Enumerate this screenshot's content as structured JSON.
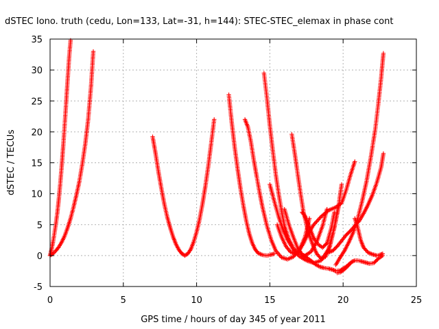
{
  "chart_data": {
    "type": "scatter",
    "title": "dSTEC Iono. truth (cedu, Lon=133, Lat=-31, h=144): STEC-STEC_elemax in phase cont",
    "xlabel": "GPS time / hours of day 345 of year 2011",
    "ylabel": "dSTEC  / TECUs",
    "xlim": [
      0,
      25
    ],
    "ylim": [
      -5,
      35
    ],
    "xticks": [
      "0",
      "5",
      "10",
      "15",
      "20",
      "25"
    ],
    "yticks": [
      "-5",
      "0",
      "5",
      "10",
      "15",
      "20",
      "25",
      "30",
      "35"
    ],
    "grid": true,
    "marker": "+",
    "color": "#ff0000",
    "series": [
      {
        "x": [
          0.0,
          0.1,
          0.2,
          0.3,
          0.4,
          0.5,
          0.6,
          0.7,
          0.8,
          0.9,
          1.0,
          1.1,
          1.2,
          1.3,
          1.4
        ],
        "values": [
          0.0,
          1.0,
          2.2,
          3.6,
          5.2,
          7.0,
          9.2,
          11.8,
          14.6,
          17.8,
          21.2,
          24.8,
          28.5,
          32.0,
          34.8
        ]
      },
      {
        "x": [
          0.0,
          0.2,
          0.4,
          0.6,
          0.8,
          1.0,
          1.2,
          1.4,
          1.6,
          1.8,
          2.0,
          2.2,
          2.4,
          2.6,
          2.8,
          2.95
        ],
        "values": [
          0.0,
          0.3,
          0.8,
          1.4,
          2.2,
          3.2,
          4.5,
          6.0,
          7.8,
          9.8,
          12.0,
          14.8,
          18.0,
          22.0,
          27.5,
          33.0
        ]
      },
      {
        "x": [
          7.0,
          7.2,
          7.4,
          7.6,
          7.8,
          8.0,
          8.2,
          8.4,
          8.6,
          8.8,
          9.0,
          9.2,
          9.4,
          9.6,
          9.8,
          10.0,
          10.2,
          10.4,
          10.6,
          10.8,
          11.0,
          11.2
        ],
        "values": [
          19.2,
          16.5,
          13.5,
          10.8,
          8.3,
          6.2,
          4.5,
          3.0,
          1.8,
          0.9,
          0.3,
          0.0,
          0.3,
          1.0,
          2.2,
          3.8,
          5.8,
          8.3,
          11.2,
          14.5,
          18.2,
          22.0
        ]
      },
      {
        "x": [
          12.2,
          12.4,
          12.6,
          12.8,
          13.0,
          13.2,
          13.4,
          13.6,
          13.8,
          14.0,
          14.2,
          14.5,
          14.8,
          15.0,
          15.3
        ],
        "values": [
          26.0,
          21.5,
          17.5,
          14.0,
          10.8,
          8.0,
          5.5,
          3.5,
          2.0,
          1.0,
          0.4,
          0.1,
          0.0,
          0.1,
          0.3
        ]
      },
      {
        "x": [
          13.3,
          13.5,
          13.7,
          13.9,
          14.1,
          14.3,
          14.5,
          14.8,
          15.1,
          15.4,
          15.8,
          16.2,
          16.6,
          17.0,
          17.4,
          17.7
        ],
        "values": [
          22.0,
          20.8,
          18.5,
          15.5,
          12.8,
          10.2,
          7.8,
          4.8,
          2.5,
          0.8,
          -0.3,
          -0.6,
          -0.2,
          0.8,
          3.0,
          6.0
        ]
      },
      {
        "x": [
          14.6,
          14.8,
          15.0,
          15.2,
          15.4,
          15.6,
          15.8,
          16.0,
          16.3,
          16.6,
          17.0,
          17.4,
          17.8,
          18.2,
          18.6,
          18.9
        ],
        "values": [
          29.5,
          25.5,
          21.0,
          17.0,
          13.2,
          10.0,
          7.2,
          4.8,
          2.6,
          1.2,
          0.2,
          0.0,
          0.6,
          2.2,
          4.8,
          7.5
        ]
      },
      {
        "x": [
          15.0,
          15.3,
          15.6,
          15.9,
          16.2,
          16.6,
          17.0,
          17.5,
          18.0,
          18.5,
          19.0,
          19.4,
          19.7,
          19.9
        ],
        "values": [
          11.5,
          8.8,
          6.3,
          4.2,
          2.6,
          1.0,
          -0.1,
          -0.8,
          -1.2,
          -0.8,
          1.0,
          4.5,
          8.2,
          11.5
        ]
      },
      {
        "x": [
          16.5,
          16.7,
          16.9,
          17.1,
          17.3,
          17.6,
          17.9,
          18.2,
          18.5,
          18.8,
          19.1,
          19.4,
          19.7
        ],
        "values": [
          19.6,
          16.5,
          13.2,
          10.0,
          7.0,
          4.0,
          1.9,
          0.3,
          -0.5,
          -0.2,
          1.5,
          4.5,
          8.0
        ]
      },
      {
        "x": [
          15.5,
          15.8,
          16.1,
          16.4,
          16.7,
          17.0,
          17.3,
          17.6,
          18.0,
          18.5,
          19.0,
          19.5,
          19.9,
          20.2,
          20.5,
          20.8
        ],
        "values": [
          5.0,
          3.0,
          1.5,
          0.6,
          0.3,
          0.8,
          2.0,
          3.5,
          5.0,
          6.3,
          7.3,
          7.8,
          8.5,
          10.5,
          13.0,
          15.2
        ]
      },
      {
        "x": [
          16.0,
          16.3,
          16.6,
          16.9,
          17.2,
          17.5,
          17.8,
          18.1,
          18.4,
          18.7,
          19.0,
          19.3,
          19.5,
          19.8,
          20.2,
          20.6
        ],
        "values": [
          7.5,
          5.0,
          3.0,
          1.2,
          0.2,
          -0.3,
          -0.8,
          -1.4,
          -1.8,
          -2.0,
          -2.1,
          -2.3,
          -2.5,
          -2.4,
          -1.8,
          -1.0
        ]
      },
      {
        "x": [
          17.2,
          17.4,
          17.6,
          17.8,
          18.0,
          18.3,
          18.6,
          18.9,
          19.2,
          19.4
        ],
        "values": [
          7.0,
          6.4,
          5.2,
          4.0,
          2.8,
          1.8,
          1.3,
          2.0,
          4.5,
          7.0
        ]
      },
      {
        "x": [
          19.6,
          19.8,
          20.0,
          20.2,
          20.4,
          20.6,
          20.8,
          21.0,
          21.2,
          21.5,
          21.8,
          22.1,
          22.4,
          22.7
        ],
        "values": [
          -2.8,
          -2.7,
          -2.4,
          -2.0,
          -1.5,
          -1.0,
          -0.8,
          -0.8,
          -0.9,
          -1.1,
          -1.3,
          -1.2,
          -0.5,
          0.0
        ]
      },
      {
        "x": [
          20.8,
          21.0,
          21.2,
          21.4,
          21.7,
          22.0,
          22.3,
          22.5,
          22.7
        ],
        "values": [
          6.0,
          4.5,
          2.5,
          1.3,
          0.5,
          0.2,
          0.0,
          0.1,
          0.3
        ]
      },
      {
        "x": [
          19.5,
          19.8,
          20.1,
          20.4,
          20.7,
          21.0,
          21.3,
          21.6,
          21.9,
          22.2,
          22.4,
          22.6,
          22.75
        ],
        "values": [
          -1.5,
          -0.3,
          0.8,
          2.2,
          3.8,
          6.0,
          8.8,
          12.0,
          16.0,
          20.5,
          24.5,
          28.8,
          32.7
        ]
      },
      {
        "x": [
          19.0,
          19.3,
          19.6,
          19.9,
          20.2,
          20.5,
          20.8,
          21.1,
          21.4,
          21.7,
          22.0,
          22.3,
          22.6,
          22.75
        ],
        "values": [
          0.5,
          0.8,
          1.5,
          2.4,
          3.3,
          4.0,
          4.8,
          5.6,
          6.8,
          8.2,
          9.8,
          11.8,
          14.3,
          16.5
        ]
      }
    ]
  }
}
